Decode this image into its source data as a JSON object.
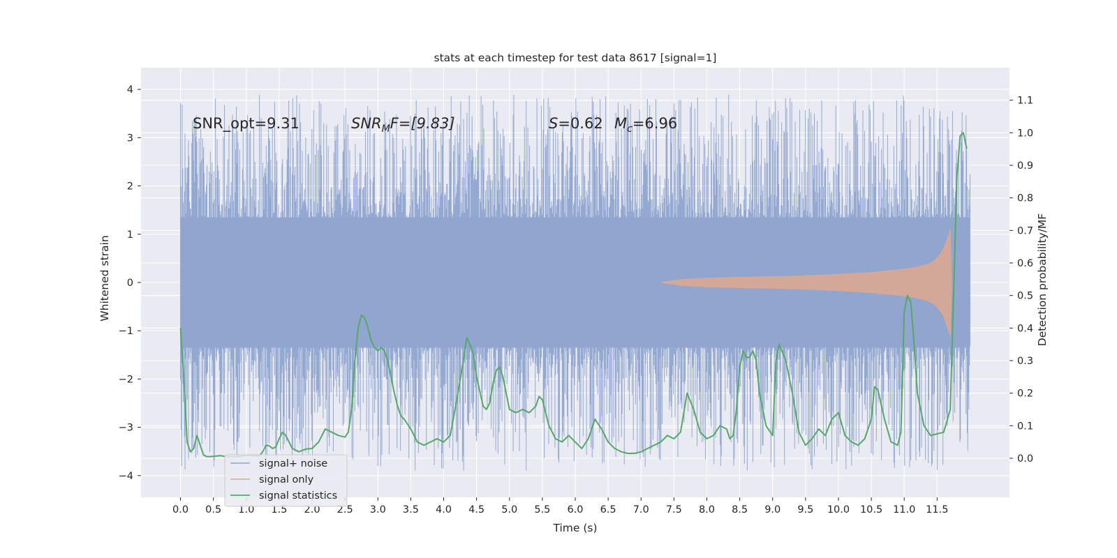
{
  "chart_data": {
    "type": "line",
    "title": "stats at each timestep for test data 8617 [signal=1]",
    "xlabel": "Time (s)",
    "ylabel": "Whitened strain",
    "ylabel_right": "Detection probability/MF",
    "xlim": [
      -0.6,
      12.6
    ],
    "ylim": [
      -4.45,
      4.45
    ],
    "ylim_right": [
      -0.12,
      1.2
    ],
    "xticks": [
      0.0,
      0.5,
      1.0,
      1.5,
      2.0,
      2.5,
      3.0,
      3.5,
      4.0,
      4.5,
      5.0,
      5.5,
      6.0,
      6.5,
      7.0,
      7.5,
      8.0,
      8.5,
      9.0,
      9.5,
      10.0,
      10.5,
      11.0,
      11.5
    ],
    "xtick_labels": [
      "0.0",
      "0.5",
      "1.0",
      "1.5",
      "2.0",
      "2.5",
      "3.0",
      "3.5",
      "4.0",
      "4.5",
      "5.0",
      "5.5",
      "6.0",
      "6.5",
      "7.0",
      "7.5",
      "8.0",
      "8.5",
      "9.0",
      "9.5",
      "10.0",
      "10.5",
      "11.0",
      "11.5"
    ],
    "yticks": [
      4,
      3,
      2,
      1,
      0,
      -1,
      -2,
      -3,
      -4
    ],
    "ytick_labels": [
      "4",
      "3",
      "2",
      "1",
      "0",
      "−1",
      "−2",
      "−3",
      "−4"
    ],
    "yticks_right": [
      1.1,
      1.0,
      0.9,
      0.8,
      0.7,
      0.6,
      0.5,
      0.4,
      0.3,
      0.2,
      0.1,
      0.0
    ],
    "ytick_labels_right": [
      "1.1",
      "1.0",
      "0.9",
      "0.8",
      "0.7",
      "0.6",
      "0.5",
      "0.4",
      "0.3",
      "0.2",
      "0.1",
      "0.0"
    ],
    "grid": true,
    "legend_position": "lower-left",
    "annotations": {
      "snr_opt": "SNR_opt=9.31",
      "snr_mf_main": "SNR",
      "snr_mf_sub": "M",
      "snr_mf_rest": "F=[9.83]",
      "s_label": "S",
      "s_value": "=0.62",
      "mc_main": "M",
      "mc_sub": "c",
      "mc_value": "=6.96"
    },
    "series": [
      {
        "name": "signal+ noise",
        "color": "#8fa5cf",
        "kind": "noise band",
        "t_range": [
          0.0,
          12.0
        ],
        "core_band": [
          -1.35,
          1.35
        ],
        "spike_range": [
          -3.9,
          3.9
        ]
      },
      {
        "name": "signal only",
        "color": "#e0a88e",
        "kind": "chirp envelope",
        "t": [
          7.3,
          7.6,
          8.0,
          8.5,
          9.0,
          9.5,
          10.0,
          10.5,
          11.0,
          11.2,
          11.4,
          11.5,
          11.6,
          11.65,
          11.7,
          11.72
        ],
        "amplitude": [
          0.0,
          0.06,
          0.09,
          0.11,
          0.12,
          0.14,
          0.17,
          0.21,
          0.28,
          0.32,
          0.4,
          0.5,
          0.7,
          0.9,
          1.1,
          0.0
        ]
      },
      {
        "name": "signal statistics",
        "color": "#55a868",
        "axis": "right",
        "t": [
          0.0,
          0.05,
          0.1,
          0.15,
          0.2,
          0.25,
          0.3,
          0.35,
          0.4,
          0.45,
          0.5,
          0.6,
          0.7,
          0.8,
          0.9,
          1.0,
          1.1,
          1.2,
          1.25,
          1.3,
          1.35,
          1.4,
          1.45,
          1.5,
          1.55,
          1.6,
          1.65,
          1.7,
          1.8,
          1.9,
          2.0,
          2.1,
          2.2,
          2.3,
          2.4,
          2.5,
          2.55,
          2.6,
          2.65,
          2.7,
          2.75,
          2.8,
          2.85,
          2.9,
          2.95,
          3.0,
          3.05,
          3.1,
          3.15,
          3.2,
          3.25,
          3.3,
          3.35,
          3.4,
          3.5,
          3.6,
          3.7,
          3.8,
          3.9,
          4.0,
          4.1,
          4.2,
          4.3,
          4.35,
          4.4,
          4.45,
          4.5,
          4.6,
          4.65,
          4.7,
          4.75,
          4.8,
          4.85,
          4.9,
          5.0,
          5.1,
          5.2,
          5.3,
          5.4,
          5.45,
          5.5,
          5.55,
          5.6,
          5.7,
          5.8,
          5.9,
          6.0,
          6.1,
          6.2,
          6.3,
          6.4,
          6.5,
          6.6,
          6.7,
          6.8,
          6.9,
          7.0,
          7.1,
          7.2,
          7.3,
          7.35,
          7.4,
          7.45,
          7.5,
          7.6,
          7.7,
          7.8,
          7.9,
          8.0,
          8.1,
          8.2,
          8.3,
          8.35,
          8.4,
          8.45,
          8.5,
          8.55,
          8.6,
          8.65,
          8.7,
          8.75,
          8.8,
          8.9,
          9.0,
          9.05,
          9.1,
          9.2,
          9.3,
          9.4,
          9.5,
          9.6,
          9.7,
          9.8,
          9.9,
          10.0,
          10.1,
          10.2,
          10.3,
          10.4,
          10.5,
          10.55,
          10.6,
          10.7,
          10.8,
          10.9,
          10.95,
          11.0,
          11.05,
          11.1,
          11.15,
          11.2,
          11.3,
          11.4,
          11.5,
          11.6,
          11.7,
          11.75,
          11.8,
          11.85,
          11.9,
          11.95
        ],
        "values": [
          0.4,
          0.25,
          0.05,
          0.02,
          0.03,
          0.07,
          0.04,
          0.01,
          0.005,
          0.005,
          0.006,
          0.008,
          0.005,
          0.004,
          0.006,
          0.009,
          0.008,
          0.007,
          0.02,
          0.04,
          0.038,
          0.03,
          0.035,
          0.06,
          0.08,
          0.07,
          0.05,
          0.03,
          0.02,
          0.028,
          0.03,
          0.05,
          0.09,
          0.08,
          0.07,
          0.065,
          0.08,
          0.15,
          0.3,
          0.4,
          0.44,
          0.43,
          0.4,
          0.36,
          0.34,
          0.33,
          0.34,
          0.33,
          0.3,
          0.25,
          0.2,
          0.16,
          0.13,
          0.12,
          0.09,
          0.05,
          0.04,
          0.05,
          0.06,
          0.05,
          0.07,
          0.18,
          0.3,
          0.37,
          0.35,
          0.32,
          0.25,
          0.16,
          0.15,
          0.17,
          0.23,
          0.27,
          0.28,
          0.25,
          0.15,
          0.14,
          0.15,
          0.14,
          0.16,
          0.19,
          0.18,
          0.14,
          0.1,
          0.06,
          0.05,
          0.07,
          0.05,
          0.03,
          0.06,
          0.12,
          0.09,
          0.05,
          0.03,
          0.02,
          0.015,
          0.015,
          0.02,
          0.03,
          0.04,
          0.05,
          0.06,
          0.07,
          0.065,
          0.06,
          0.08,
          0.2,
          0.15,
          0.08,
          0.06,
          0.07,
          0.1,
          0.09,
          0.06,
          0.07,
          0.15,
          0.28,
          0.33,
          0.31,
          0.31,
          0.33,
          0.3,
          0.2,
          0.1,
          0.07,
          0.3,
          0.35,
          0.3,
          0.2,
          0.08,
          0.04,
          0.06,
          0.09,
          0.07,
          0.12,
          0.14,
          0.07,
          0.05,
          0.04,
          0.06,
          0.12,
          0.22,
          0.21,
          0.12,
          0.05,
          0.04,
          0.08,
          0.45,
          0.5,
          0.48,
          0.35,
          0.2,
          0.1,
          0.07,
          0.075,
          0.08,
          0.15,
          0.5,
          0.86,
          0.99,
          1.0,
          0.95
        ]
      }
    ]
  }
}
